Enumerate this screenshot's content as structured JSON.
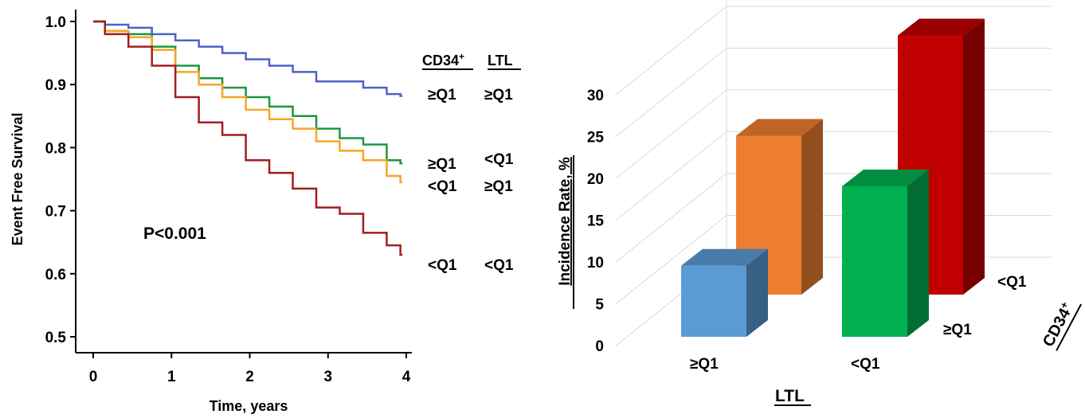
{
  "chart_data": [
    {
      "type": "line",
      "chart_style": "kaplan-meier step",
      "ylabel": "Event Free Survival",
      "xlabel": "Time, years",
      "xlim": [
        0,
        4
      ],
      "ylim": [
        0.5,
        1.0
      ],
      "x_ticks": [
        "0",
        "1",
        "2",
        "3",
        "4"
      ],
      "y_ticks": [
        "0.5",
        "0.6",
        "0.7",
        "0.8",
        "0.9",
        "1.0"
      ],
      "annotation": "P<0.001",
      "grid": false,
      "legend_header": {
        "cd34": "CD34",
        "cd34_sup": "+",
        "ltl": "LTL"
      },
      "legend_rows": [
        {
          "cd34": "≥Q1",
          "ltl": "≥Q1",
          "color": "#4a63c5"
        },
        {
          "cd34": "≥Q1",
          "ltl": "<Q1",
          "color": "#1e9640"
        },
        {
          "cd34": "<Q1",
          "ltl": "≥Q1",
          "color": "#f5a623"
        },
        {
          "cd34": "<Q1",
          "ltl": "<Q1",
          "color": "#a31d1d"
        }
      ],
      "series": [
        {
          "color": "#4a63c5",
          "x": [
            0,
            0.3,
            0.6,
            0.9,
            1.2,
            1.5,
            1.8,
            2.1,
            2.4,
            2.7,
            3.0,
            3.3,
            3.6,
            3.9,
            3.95
          ],
          "y": [
            1.0,
            0.995,
            0.99,
            0.98,
            0.97,
            0.96,
            0.95,
            0.94,
            0.93,
            0.92,
            0.905,
            0.905,
            0.895,
            0.885,
            0.882
          ]
        },
        {
          "color": "#1e9640",
          "x": [
            0,
            0.3,
            0.6,
            0.9,
            1.2,
            1.5,
            1.8,
            2.1,
            2.4,
            2.7,
            3.0,
            3.3,
            3.6,
            3.9,
            3.95
          ],
          "y": [
            1.0,
            0.985,
            0.98,
            0.96,
            0.93,
            0.91,
            0.895,
            0.88,
            0.865,
            0.85,
            0.83,
            0.815,
            0.805,
            0.78,
            0.775
          ]
        },
        {
          "color": "#f5a623",
          "x": [
            0,
            0.3,
            0.6,
            0.9,
            1.2,
            1.5,
            1.8,
            2.1,
            2.4,
            2.7,
            3.0,
            3.3,
            3.6,
            3.9,
            3.95
          ],
          "y": [
            1.0,
            0.985,
            0.975,
            0.955,
            0.92,
            0.9,
            0.88,
            0.86,
            0.845,
            0.83,
            0.81,
            0.795,
            0.78,
            0.755,
            0.745
          ]
        },
        {
          "color": "#a31d1d",
          "x": [
            0,
            0.3,
            0.6,
            0.9,
            1.2,
            1.5,
            1.8,
            2.1,
            2.4,
            2.7,
            3.0,
            3.3,
            3.6,
            3.9,
            3.95
          ],
          "y": [
            1.0,
            0.98,
            0.96,
            0.93,
            0.88,
            0.84,
            0.82,
            0.78,
            0.76,
            0.735,
            0.705,
            0.695,
            0.665,
            0.645,
            0.63
          ]
        }
      ]
    },
    {
      "type": "bar",
      "chart_style": "3d grouped",
      "ylabel": "Incidence Rate, %",
      "ylim": [
        0,
        30
      ],
      "y_ticks": [
        "0",
        "5",
        "10",
        "15",
        "20",
        "25",
        "30"
      ],
      "x_axis_title": "LTL",
      "depth_axis_title": "CD34",
      "depth_axis_title_sup": "+",
      "x_categories": [
        "≥Q1",
        "<Q1"
      ],
      "depth_categories": [
        "≥Q1",
        "<Q1"
      ],
      "bars": [
        {
          "ltl": "≥Q1",
          "cd34": "≥Q1",
          "value": 8.5,
          "color": "#5b9bd5"
        },
        {
          "ltl": "≥Q1",
          "cd34": "<Q1",
          "value": 19,
          "color": "#ed7d31"
        },
        {
          "ltl": "<Q1",
          "cd34": "≥Q1",
          "value": 18,
          "color": "#00b050"
        },
        {
          "ltl": "<Q1",
          "cd34": "<Q1",
          "value": 31,
          "color": "#c00000"
        }
      ]
    }
  ]
}
